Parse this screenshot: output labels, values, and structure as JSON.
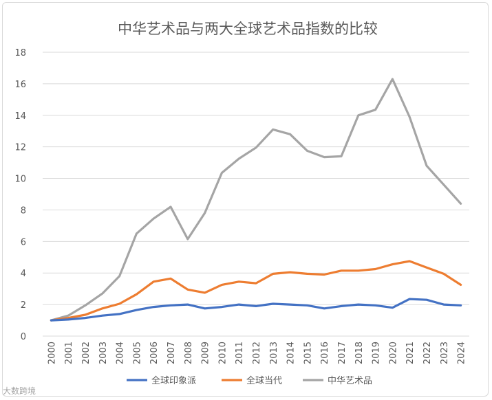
{
  "chart_data": {
    "type": "line",
    "title": "中华艺术品与两大全球艺术品指数的比较",
    "x": [
      "2000",
      "2001",
      "2002",
      "2003",
      "2004",
      "2005",
      "2006",
      "2007",
      "2008",
      "2009",
      "2010",
      "2011",
      "2012",
      "2013",
      "2014",
      "2015",
      "2016",
      "2017",
      "2018",
      "2019",
      "2020",
      "2021",
      "2022",
      "2023",
      "2024"
    ],
    "ylim": [
      0,
      18
    ],
    "yticks": [
      0,
      2,
      4,
      6,
      8,
      10,
      12,
      14,
      16,
      18
    ],
    "grid": "horizontal",
    "legend": "bottom",
    "series": [
      {
        "name": "全球印象派",
        "color": "#4472c4",
        "values": [
          1.0,
          1.05,
          1.15,
          1.3,
          1.4,
          1.65,
          1.85,
          1.95,
          2.0,
          1.75,
          1.85,
          2.0,
          1.9,
          2.05,
          2.0,
          1.95,
          1.75,
          1.9,
          2.0,
          1.95,
          1.8,
          2.35,
          2.3,
          2.0,
          1.95
        ]
      },
      {
        "name": "全球当代",
        "color": "#ed7d31",
        "values": [
          1.0,
          1.15,
          1.35,
          1.75,
          2.05,
          2.65,
          3.45,
          3.65,
          2.95,
          2.75,
          3.25,
          3.45,
          3.35,
          3.95,
          4.05,
          3.95,
          3.9,
          4.15,
          4.15,
          4.25,
          4.55,
          4.75,
          4.35,
          3.95,
          3.25
        ]
      },
      {
        "name": "中华艺术品",
        "color": "#a5a5a5",
        "values": [
          1.0,
          1.3,
          1.95,
          2.7,
          3.8,
          6.5,
          7.45,
          8.2,
          6.15,
          7.8,
          10.35,
          11.25,
          11.95,
          13.1,
          12.8,
          11.75,
          11.35,
          11.4,
          14.0,
          14.35,
          16.3,
          13.9,
          10.8,
          9.6,
          8.4
        ]
      }
    ]
  },
  "watermark": "大数跨境"
}
